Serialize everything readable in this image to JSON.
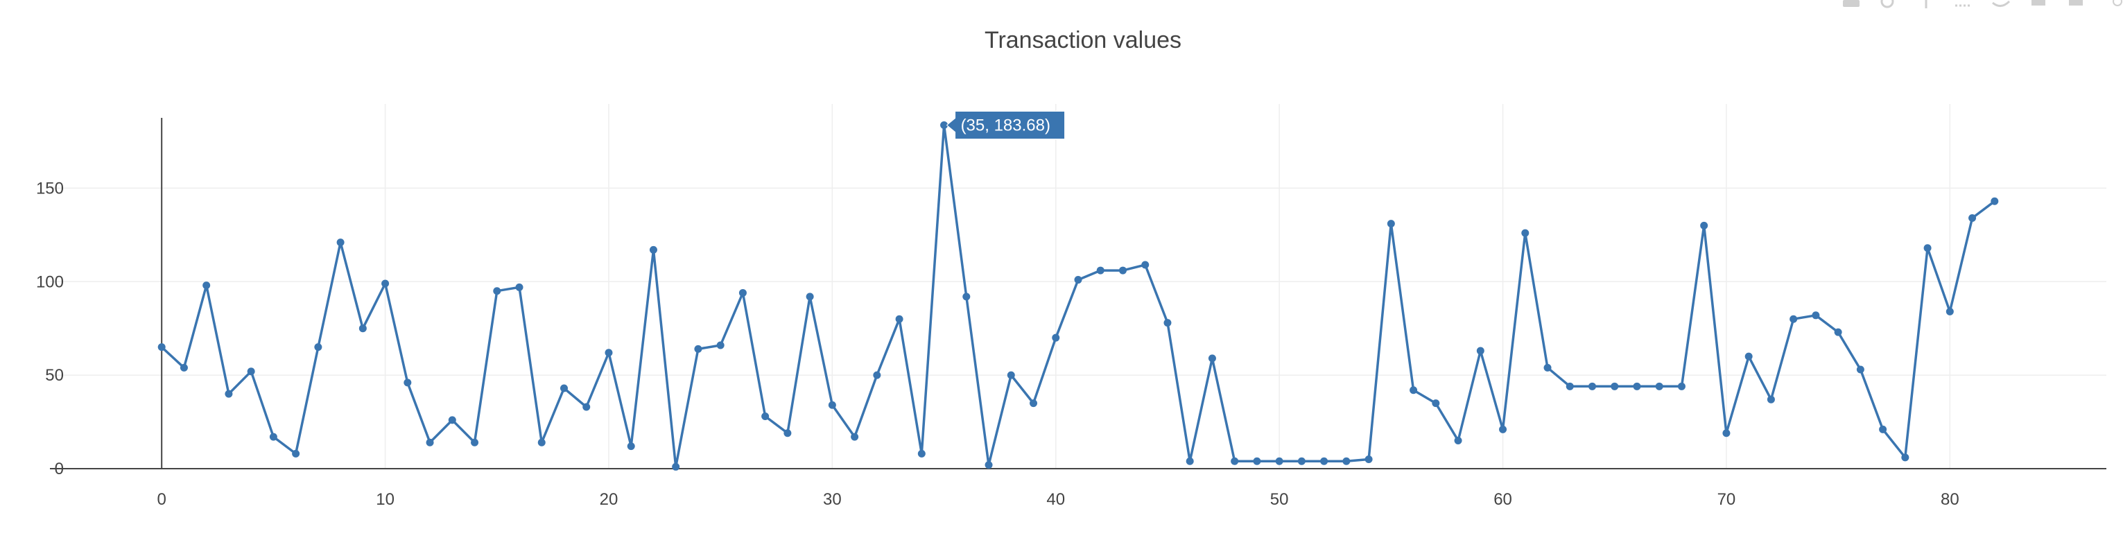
{
  "chart_data": {
    "type": "line",
    "title": "Transaction values",
    "xlabel": "",
    "ylabel": "",
    "xlim": [
      -5,
      87
    ],
    "ylim": [
      0,
      195
    ],
    "xticks": [
      0,
      10,
      20,
      30,
      40,
      50,
      60,
      70,
      80
    ],
    "yticks": [
      0,
      50,
      100,
      150
    ],
    "grid": true,
    "series": [
      {
        "color": "#3a75b0",
        "markers": true,
        "x": [
          0,
          1,
          2,
          3,
          4,
          5,
          6,
          7,
          8,
          9,
          10,
          11,
          12,
          13,
          14,
          15,
          16,
          17,
          18,
          19,
          20,
          21,
          22,
          23,
          24,
          25,
          26,
          27,
          28,
          29,
          30,
          31,
          32,
          33,
          34,
          35,
          36,
          37,
          38,
          39,
          40,
          41,
          42,
          43,
          44,
          45,
          46,
          47,
          48,
          49,
          50,
          51,
          52,
          53,
          54,
          55,
          56,
          57,
          58,
          59,
          60,
          61,
          62,
          63,
          64,
          65,
          66,
          67,
          68,
          69,
          70,
          71,
          72,
          73,
          74,
          75,
          76,
          77,
          78,
          79,
          80,
          81,
          82
        ],
        "y": [
          65,
          54,
          98,
          40,
          52,
          17,
          8,
          65,
          121,
          75,
          99,
          46,
          14,
          26,
          14,
          95,
          97,
          14,
          43,
          33,
          62,
          12,
          117,
          1,
          64,
          66,
          94,
          28,
          19,
          92,
          34,
          17,
          50,
          80,
          8,
          183.68,
          92,
          2,
          50,
          35,
          70,
          101,
          106,
          106,
          109,
          78,
          4,
          59,
          4,
          4,
          4,
          4,
          4,
          4,
          5,
          131,
          42,
          35,
          15,
          63,
          21,
          126,
          54,
          44,
          44,
          44,
          44,
          44,
          44,
          130,
          19,
          60,
          37,
          80,
          82,
          73,
          53,
          21,
          6,
          118,
          84,
          134,
          143
        ]
      }
    ],
    "hover_label": "(35, 183.68)"
  },
  "colors": {
    "line": "#3a75b0",
    "hover_bg": "#3a75b0",
    "grid": "#eeeeee",
    "axis": "#444444"
  }
}
